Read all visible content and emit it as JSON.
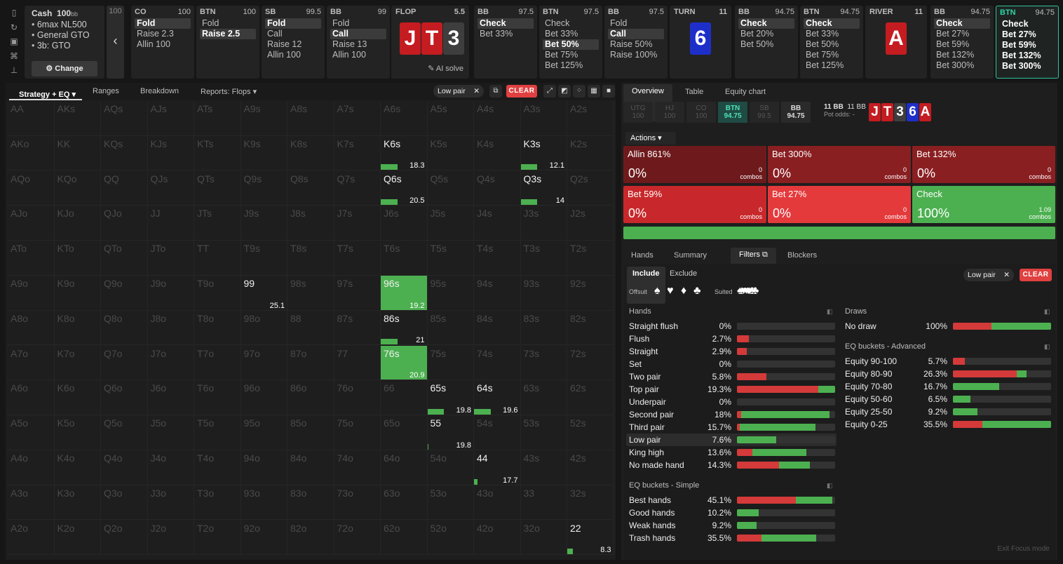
{
  "left_nav": {
    "icons": [
      "bookmark-icon",
      "history-icon",
      "save-icon",
      "gamepad-icon",
      "align-icon"
    ]
  },
  "info": {
    "title": "Cash",
    "stack": "100",
    "stack_unit": "bb",
    "lines": [
      "6max NL500",
      "General GTO",
      "3b: GTO"
    ],
    "change_label": "Change"
  },
  "prev": {
    "value": "100",
    "arrow": "‹"
  },
  "strips": [
    {
      "pos": "CO",
      "val": "100",
      "opts": [
        "Fold",
        "Raise 2.3",
        "Allin 100"
      ],
      "sel": 0
    },
    {
      "pos": "BTN",
      "val": "100",
      "opts": [
        "Fold",
        "Raise 2.5"
      ],
      "sel": 1
    },
    {
      "pos": "SB",
      "val": "99.5",
      "opts": [
        "Fold",
        "Call",
        "Raise 12",
        "Allin 100"
      ],
      "sel": 0
    },
    {
      "pos": "BB",
      "val": "99",
      "opts": [
        "Fold",
        "Call",
        "Raise 13",
        "Allin 100"
      ],
      "sel": 1
    },
    {
      "pos": "BB",
      "val": "97.5",
      "opts": [
        "Check",
        "Bet 33%"
      ],
      "sel": 0
    },
    {
      "pos": "BTN",
      "val": "97.5",
      "opts": [
        "Check",
        "Bet 33%",
        "Bet 50%",
        "Bet 75%",
        "Bet 125%"
      ],
      "sel": 2
    },
    {
      "pos": "BB",
      "val": "97.5",
      "opts": [
        "Fold",
        "Call",
        "Raise 50%",
        "Raise 100%"
      ],
      "sel": 1
    },
    {
      "pos": "BB",
      "val": "94.75",
      "opts": [
        "Check",
        "Bet 20%",
        "Bet 50%"
      ],
      "sel": 0
    },
    {
      "pos": "BTN",
      "val": "94.75",
      "opts": [
        "Check",
        "Bet 33%",
        "Bet 50%",
        "Bet 75%",
        "Bet 125%"
      ],
      "sel": 0
    },
    {
      "pos": "BB",
      "val": "94.75",
      "opts": [
        "Check",
        "Bet 27%",
        "Bet 59%",
        "Bet 132%",
        "Bet 300%"
      ],
      "sel": 0
    },
    {
      "pos": "BTN",
      "val": "94.75",
      "opts": [
        "Check",
        "Bet 27%",
        "Bet 59%",
        "Bet 132%",
        "Bet 300%"
      ],
      "sel": -1
    }
  ],
  "flop": {
    "label": "FLOP",
    "pot": "5.5",
    "cards": [
      "J",
      "T",
      "3"
    ],
    "ai": "AI solve"
  },
  "turn": {
    "label": "TURN",
    "pot": "11",
    "card": "6"
  },
  "river": {
    "label": "RIVER",
    "pot": "11",
    "card": "A"
  },
  "left_tabs": {
    "strategy": "Strategy + EQ",
    "ranges": "Ranges",
    "breakdown": "Breakdown",
    "reports": "Reports: Flops"
  },
  "filter_chip": {
    "label": "Low pair",
    "x": "✕"
  },
  "clear_label": "CLEAR",
  "grid": {
    "ranks": [
      "A",
      "K",
      "Q",
      "J",
      "T",
      "9",
      "8",
      "7",
      "6",
      "5",
      "4",
      "3",
      "2"
    ],
    "highlights": {
      "K6s": {
        "pct": 0.36,
        "cnt": "18.3"
      },
      "K3s": {
        "pct": 0.36,
        "cnt": "12.1"
      },
      "Q6s": {
        "pct": 0.36,
        "cnt": "20.5"
      },
      "Q3s": {
        "pct": 0.36,
        "cnt": "14"
      },
      "99": {
        "pct": 0,
        "cnt": "25.1"
      },
      "96s": {
        "pct": 1,
        "cnt": "19.2"
      },
      "86s": {
        "pct": 0.36,
        "cnt": "21"
      },
      "76s": {
        "pct": 1,
        "cnt": "20.9"
      },
      "65s": {
        "pct": 0.36,
        "cnt": "19.8"
      },
      "64s": {
        "pct": 0.36,
        "cnt": "19.6"
      },
      "55": {
        "pct": 0.02,
        "cnt": "19.8"
      },
      "44": {
        "pct": 0.08,
        "cnt": "17.7"
      },
      "22": {
        "pct": 0.12,
        "cnt": "8.3"
      }
    }
  },
  "right_tabs": {
    "overview": "Overview",
    "table": "Table",
    "equity_chart": "Equity chart"
  },
  "positions": [
    {
      "n": "UTG",
      "v": "100"
    },
    {
      "n": "HJ",
      "v": "100"
    },
    {
      "n": "CO",
      "v": "100"
    },
    {
      "n": "BTN",
      "v": "94.75"
    },
    {
      "n": "SB",
      "v": "99.5"
    },
    {
      "n": "BB",
      "v": "94.75"
    }
  ],
  "pot": {
    "a": "11 BB",
    "b": "11 BB",
    "odds_label": "Pot odds:",
    "odds": "-"
  },
  "mini_cards": [
    "J",
    "T",
    "3",
    "6",
    "A"
  ],
  "actions_label": "Actions",
  "actions": [
    {
      "n": "Allin 861%",
      "p": "0%",
      "c": "0",
      "u": "combos",
      "color": "#6e1a1c"
    },
    {
      "n": "Bet 300%",
      "p": "0%",
      "c": "0",
      "u": "combos",
      "color": "#8a1f22"
    },
    {
      "n": "Bet 132%",
      "p": "0%",
      "c": "0",
      "u": "combos",
      "color": "#8a1f22"
    },
    {
      "n": "Bet 59%",
      "p": "0%",
      "c": "0",
      "u": "combos",
      "color": "#c8282b"
    },
    {
      "n": "Bet 27%",
      "p": "0%",
      "c": "0",
      "u": "combos",
      "color": "#e43a3c"
    },
    {
      "n": "Check",
      "p": "100%",
      "c": "1.09",
      "u": "combos",
      "color": "#4cb050"
    }
  ],
  "filter_tabs": {
    "hands": "Hands",
    "summary": "Summary",
    "filters": "Filters",
    "blockers": "Blockers"
  },
  "include": "Include",
  "exclude": "Exclude",
  "offsuit": "Offsuit",
  "suited": "Suited",
  "hands_title": "Hands",
  "hands": [
    {
      "n": "Straight flush",
      "v": "0%",
      "r": 0,
      "g": 0
    },
    {
      "n": "Flush",
      "v": "2.7%",
      "r": 0.12,
      "g": 0
    },
    {
      "n": "Straight",
      "v": "2.9%",
      "r": 0.1,
      "g": 0
    },
    {
      "n": "Set",
      "v": "0%",
      "r": 0,
      "g": 0
    },
    {
      "n": "Two pair",
      "v": "5.8%",
      "r": 0.3,
      "g": 0
    },
    {
      "n": "Top pair",
      "v": "19.3%",
      "r": 0.83,
      "g": 0.17
    },
    {
      "n": "Underpair",
      "v": "0%",
      "r": 0,
      "g": 0
    },
    {
      "n": "Second pair",
      "v": "18%",
      "r": 0.04,
      "g": 0.9
    },
    {
      "n": "Third pair",
      "v": "15.7%",
      "r": 0.03,
      "g": 0.77
    },
    {
      "n": "Low pair",
      "v": "7.6%",
      "r": 0,
      "g": 0.4
    },
    {
      "n": "King high",
      "v": "13.6%",
      "r": 0.16,
      "g": 0.55
    },
    {
      "n": "No made hand",
      "v": "14.3%",
      "r": 0.43,
      "g": 0.31
    }
  ],
  "eq_simple_title": "EQ buckets - Simple",
  "eq_simple": [
    {
      "n": "Best hands",
      "v": "45.1%",
      "r": 0.6,
      "g": 0.37
    },
    {
      "n": "Good hands",
      "v": "10.2%",
      "r": 0,
      "g": 0.22
    },
    {
      "n": "Weak hands",
      "v": "9.2%",
      "r": 0,
      "g": 0.2
    },
    {
      "n": "Trash hands",
      "v": "35.5%",
      "r": 0.25,
      "g": 0.56
    }
  ],
  "draws_title": "Draws",
  "draws": [
    {
      "n": "No draw",
      "v": "100%",
      "r": 0.39,
      "g": 0.61
    }
  ],
  "eq_adv_title": "EQ buckets - Advanced",
  "eq_adv": [
    {
      "n": "Equity 90-100",
      "v": "5.7%",
      "r": 0.12,
      "g": 0
    },
    {
      "n": "Equity 80-90",
      "v": "26.3%",
      "r": 0.65,
      "g": 0.1
    },
    {
      "n": "Equity 70-80",
      "v": "16.7%",
      "r": 0,
      "g": 0.47
    },
    {
      "n": "Equity 50-60",
      "v": "6.5%",
      "r": 0,
      "g": 0.18
    },
    {
      "n": "Equity 25-50",
      "v": "9.2%",
      "r": 0,
      "g": 0.25
    },
    {
      "n": "Equity 0-25",
      "v": "35.5%",
      "r": 0.3,
      "g": 0.7
    }
  ],
  "exit_focus": "Exit Focus mode",
  "colors": {
    "green": "#4cb050",
    "red": "#d43a3a",
    "teal": "#2fc39a"
  }
}
